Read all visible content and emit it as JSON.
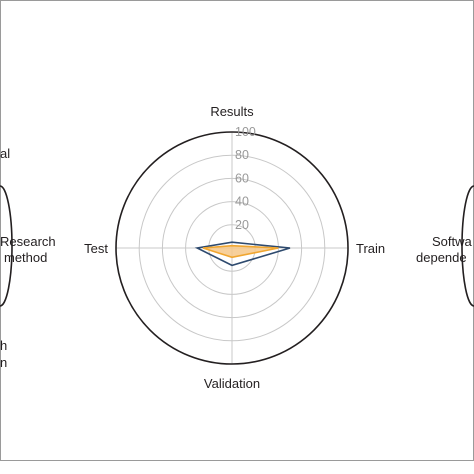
{
  "chart_data": [
    {
      "type": "radar",
      "axes": [
        "Research method"
      ],
      "label_fragments": [
        "al",
        "Research",
        "method",
        "h",
        "n"
      ],
      "series": []
    },
    {
      "type": "radar",
      "axes": [
        "Results",
        "Train",
        "Validation",
        "Test"
      ],
      "rlim": [
        0,
        100
      ],
      "r_ticks": [
        "20",
        "40",
        "60",
        "80",
        "100"
      ],
      "grid": true,
      "series": [
        {
          "values": [
            5,
            50,
            15,
            30
          ],
          "color": "#2e4a6e"
        },
        {
          "values": [
            2,
            40,
            8,
            25
          ],
          "color": "#f0a630",
          "fill": "#f6c889"
        }
      ]
    },
    {
      "type": "radar",
      "axes": [
        "Software dependencies"
      ],
      "label_fragments": [
        "Softwa",
        "depende"
      ],
      "series": []
    }
  ],
  "colors": {
    "frame": "#9a9a9a",
    "grid": "#c8c8c8",
    "outer_ring": "#231f20",
    "tick_text": "#999999",
    "label_text": "#231f20"
  }
}
